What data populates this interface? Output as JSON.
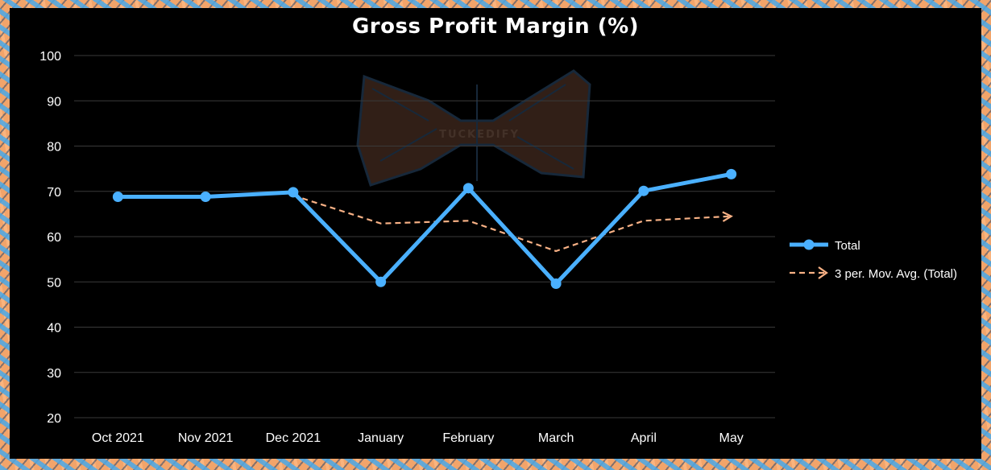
{
  "chart_data": {
    "type": "line",
    "title": "Gross Profit Margin (%)",
    "xlabel": "",
    "ylabel": "",
    "categories": [
      "Oct 2021",
      "Nov 2021",
      "Dec 2021",
      "January",
      "February",
      "March",
      "April",
      "May"
    ],
    "ylim": [
      20,
      100
    ],
    "yticks": [
      20,
      30,
      40,
      50,
      60,
      70,
      80,
      90,
      100
    ],
    "grid": true,
    "legend_position": "right",
    "series": [
      {
        "name": "Total",
        "values": [
          68.8,
          68.8,
          69.8,
          50.0,
          70.7,
          49.6,
          70.1,
          73.8
        ],
        "color": "#4ab0ff",
        "style": "solid-with-markers"
      },
      {
        "name": "3 per. Mov. Avg. (Total)",
        "values": [
          null,
          null,
          69.1,
          62.9,
          63.5,
          56.8,
          63.5,
          64.5
        ],
        "color": "#f8b185",
        "style": "dashed-trendline"
      }
    ],
    "watermark": "TUCKEDIFY"
  },
  "colors": {
    "background": "#000000",
    "gridline": "#3a3a3a",
    "text": "#ffffff",
    "border": "#f2a46a"
  }
}
